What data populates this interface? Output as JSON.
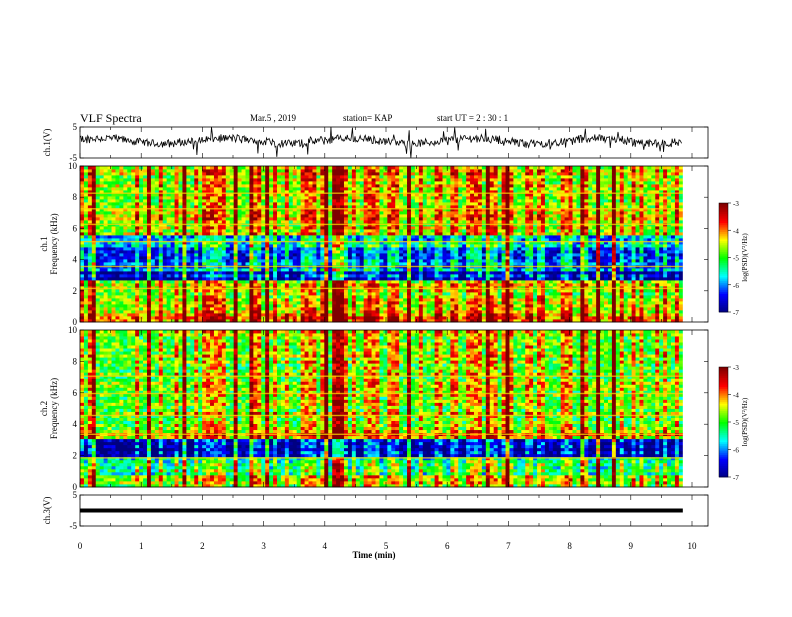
{
  "header": {
    "title": "VLF Spectra",
    "date": "Mar.5  , 2019",
    "station": "station= KAP",
    "start": "start  UT  =   2 : 30 : 1"
  },
  "chart_data": {
    "type": "heatmap",
    "xlabel": "Time  (min)",
    "xlim": [
      0,
      10
    ],
    "xticks": [
      0,
      1,
      2,
      3,
      4,
      5,
      6,
      7,
      8,
      9,
      10
    ],
    "panels": [
      {
        "id": "ch1-waveform",
        "type": "line",
        "ylabel": "ch.1(V)",
        "ylim": [
          -5,
          5
        ],
        "yticks": [
          -5,
          5
        ],
        "description_mean_level": 0.5
      },
      {
        "id": "ch1-spectrogram",
        "type": "heatmap",
        "ylabel": "ch.1",
        "ylabel2": "Frequency  (kHz)",
        "ylim": [
          0,
          10
        ],
        "yticks": [
          0,
          2,
          4,
          6,
          8,
          10
        ],
        "colorbar": {
          "label": "log(PSD)(V²/Hz)",
          "range": [
            -7,
            -3
          ],
          "ticks": [
            -3,
            -4,
            -5,
            -6,
            -7
          ]
        },
        "bands": [
          {
            "f": [
              0,
              0.6
            ],
            "level": -4.2
          },
          {
            "f": [
              0.6,
              1.8
            ],
            "level": -4.6
          },
          {
            "f": [
              1.8,
              2.6
            ],
            "level": -4.8
          },
          {
            "f": [
              2.6,
              3.3
            ],
            "level": -6.9
          },
          {
            "f": [
              3.3,
              4.8
            ],
            "level": -6.3
          },
          {
            "f": [
              4.8,
              5.5
            ],
            "level": -5.8
          },
          {
            "f": [
              5.5,
              10
            ],
            "level": -4.6
          }
        ]
      },
      {
        "id": "ch2-spectrogram",
        "type": "heatmap",
        "ylabel": "ch.2",
        "ylabel2": "Frequency  (kHz)",
        "ylim": [
          0,
          10
        ],
        "yticks": [
          0,
          2,
          4,
          6,
          8,
          10
        ],
        "colorbar": {
          "label": "log(PSD)(V²/Hz)",
          "range": [
            -7,
            -3
          ],
          "ticks": [
            -3,
            -4,
            -5,
            -6,
            -7
          ]
        },
        "bands": [
          {
            "f": [
              0,
              0.8
            ],
            "level": -5.0
          },
          {
            "f": [
              0.8,
              1.9
            ],
            "level": -5.4
          },
          {
            "f": [
              1.9,
              3.1
            ],
            "level": -7.0
          },
          {
            "f": [
              3.1,
              3.7
            ],
            "level": -4.4
          },
          {
            "f": [
              3.7,
              10
            ],
            "level": -4.9
          }
        ]
      },
      {
        "id": "ch3-waveform",
        "type": "line",
        "ylabel": "ch.3(V)",
        "ylim": [
          -5,
          5
        ],
        "yticks": [
          -5,
          5
        ],
        "constant_value": 0
      }
    ]
  },
  "colors": {
    "colormap": [
      "#00007f",
      "#0000ff",
      "#00ffff",
      "#00ff00",
      "#ffff00",
      "#ff0000",
      "#7f0000"
    ],
    "line": "#000000"
  }
}
